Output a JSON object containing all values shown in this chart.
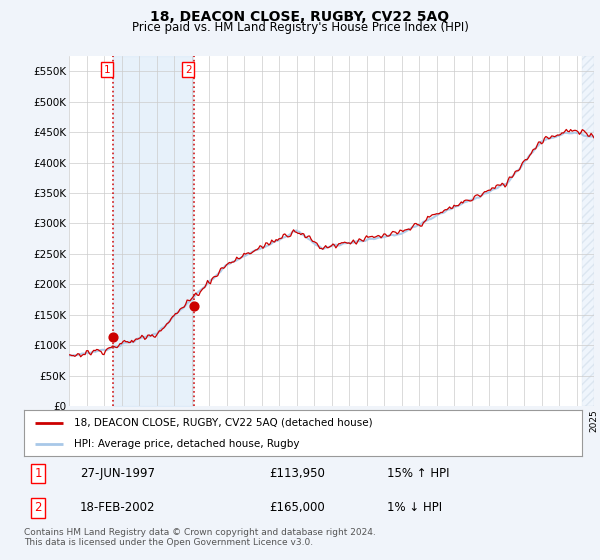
{
  "title": "18, DEACON CLOSE, RUGBY, CV22 5AQ",
  "subtitle": "Price paid vs. HM Land Registry's House Price Index (HPI)",
  "ylim": [
    0,
    575000
  ],
  "yticks": [
    0,
    50000,
    100000,
    150000,
    200000,
    250000,
    300000,
    350000,
    400000,
    450000,
    500000,
    550000
  ],
  "ytick_labels": [
    "£0",
    "£50K",
    "£100K",
    "£150K",
    "£200K",
    "£250K",
    "£300K",
    "£350K",
    "£400K",
    "£450K",
    "£500K",
    "£550K"
  ],
  "hpi_color": "#a8c8e8",
  "price_color": "#cc0000",
  "sale1_date": 1997.49,
  "sale1_price": 113950,
  "sale2_date": 2002.12,
  "sale2_price": 165000,
  "legend_price_label": "18, DEACON CLOSE, RUGBY, CV22 5AQ (detached house)",
  "legend_hpi_label": "HPI: Average price, detached house, Rugby",
  "table_row1": [
    "1",
    "27-JUN-1997",
    "£113,950",
    "15% ↑ HPI"
  ],
  "table_row2": [
    "2",
    "18-FEB-2002",
    "£165,000",
    "1% ↓ HPI"
  ],
  "footer": "Contains HM Land Registry data © Crown copyright and database right 2024.\nThis data is licensed under the Open Government Licence v3.0.",
  "background_color": "#f0f4fa",
  "plot_bg_color": "#ffffff",
  "grid_color": "#cccccc",
  "shade_color": "#d8e8f8"
}
